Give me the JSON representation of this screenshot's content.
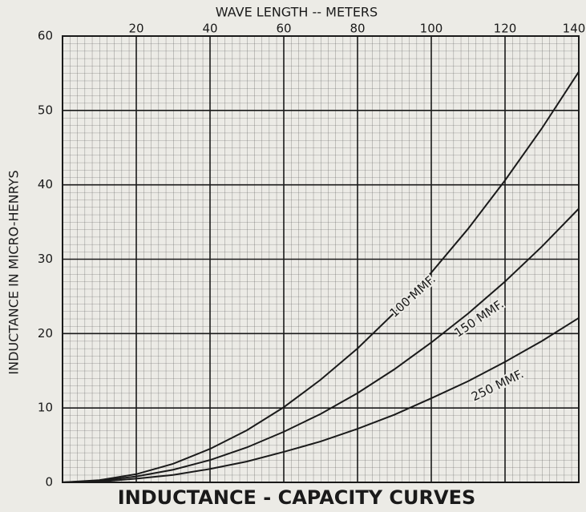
{
  "chart_data": {
    "type": "line",
    "title": "INDUCTANCE - CAPACITY CURVES",
    "x_label": "WAVE LENGTH -- METERS",
    "y_label": "INDUCTANCE IN MICRO-HENRYS",
    "x": [
      0,
      10,
      20,
      30,
      40,
      50,
      60,
      70,
      80,
      90,
      100,
      110,
      120,
      130,
      140
    ],
    "series": [
      {
        "name": "100 MMF.",
        "color": "#1a1a1a",
        "values": [
          0,
          0.3,
          1.1,
          2.5,
          4.5,
          7.0,
          10.1,
          13.8,
          18.0,
          22.8,
          28.2,
          34.1,
          40.6,
          47.6,
          55.2
        ]
      },
      {
        "name": "150 MMF.",
        "color": "#1a1a1a",
        "values": [
          0,
          0.2,
          0.8,
          1.7,
          3.0,
          4.7,
          6.8,
          9.2,
          12.0,
          15.2,
          18.8,
          22.7,
          27.0,
          31.7,
          36.8
        ]
      },
      {
        "name": "250 MMF.",
        "color": "#1a1a1a",
        "values": [
          0,
          0.1,
          0.5,
          1.0,
          1.8,
          2.8,
          4.1,
          5.5,
          7.2,
          9.1,
          11.3,
          13.6,
          16.2,
          19.0,
          22.1
        ]
      }
    ],
    "xlim": [
      0,
      140
    ],
    "xticks": [
      20,
      40,
      60,
      80,
      100,
      120,
      140
    ],
    "ylim": [
      0,
      60
    ],
    "yticks": [
      0,
      10,
      20,
      30,
      40,
      50,
      60
    ],
    "grid": true
  }
}
